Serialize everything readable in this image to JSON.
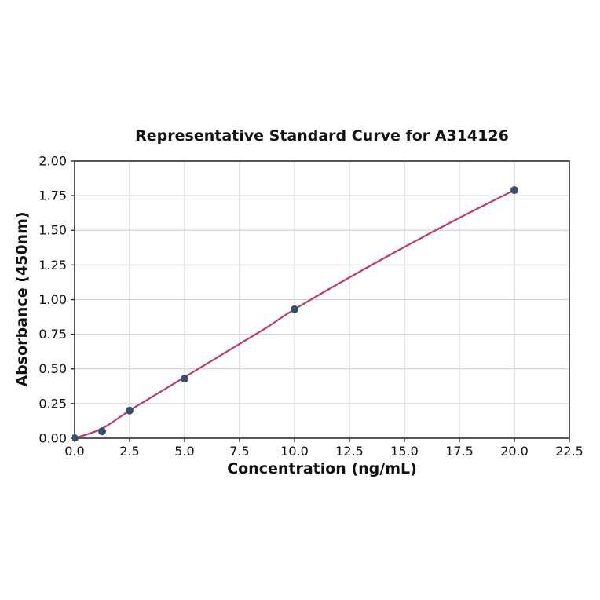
{
  "figure": {
    "background_color": "#ffffff"
  },
  "chart_data": {
    "type": "scatter",
    "title": "Representative Standard Curve for A314126",
    "xlabel": "Concentration (ng/mL)",
    "ylabel": "Absorbance (450nm)",
    "xlim": [
      0,
      22.5
    ],
    "ylim": [
      0,
      2.0
    ],
    "grid": true,
    "legend": "none",
    "xtick_values": [
      0.0,
      2.5,
      5.0,
      7.5,
      10.0,
      12.5,
      15.0,
      17.5,
      20.0,
      22.5
    ],
    "xtick_labels": [
      "0.0",
      "2.5",
      "5.0",
      "7.5",
      "10.0",
      "12.5",
      "15.0",
      "17.5",
      "20.0",
      "22.5"
    ],
    "ytick_values": [
      0.0,
      0.25,
      0.5,
      0.75,
      1.0,
      1.25,
      1.5,
      1.75,
      2.0
    ],
    "ytick_labels": [
      "0.00",
      "0.25",
      "0.50",
      "0.75",
      "1.00",
      "1.25",
      "1.50",
      "1.75",
      "2.00"
    ],
    "series": [
      {
        "name": "fit-curve",
        "type": "line",
        "color": "#c13a60",
        "points": [
          [
            0,
            0.0
          ],
          [
            1.25,
            0.07
          ],
          [
            2.5,
            0.2
          ],
          [
            3.75,
            0.32
          ],
          [
            5,
            0.44
          ],
          [
            6.25,
            0.56
          ],
          [
            7.5,
            0.68
          ],
          [
            8.75,
            0.8
          ],
          [
            10,
            0.93
          ],
          [
            12.5,
            1.16
          ],
          [
            15,
            1.38
          ],
          [
            17.5,
            1.59
          ],
          [
            20,
            1.79
          ]
        ]
      },
      {
        "name": "standard-points",
        "type": "scatter",
        "color": "#35506f",
        "points": [
          [
            0,
            0.0
          ],
          [
            1.25,
            0.05
          ],
          [
            2.5,
            0.2
          ],
          [
            5,
            0.43
          ],
          [
            10,
            0.93
          ],
          [
            20,
            1.79
          ]
        ]
      }
    ],
    "colors": {
      "grid": "#cccccc",
      "spine": "#2e2e2e",
      "marker": "#35506f",
      "line": "#c13a60",
      "text": "#111111"
    }
  }
}
